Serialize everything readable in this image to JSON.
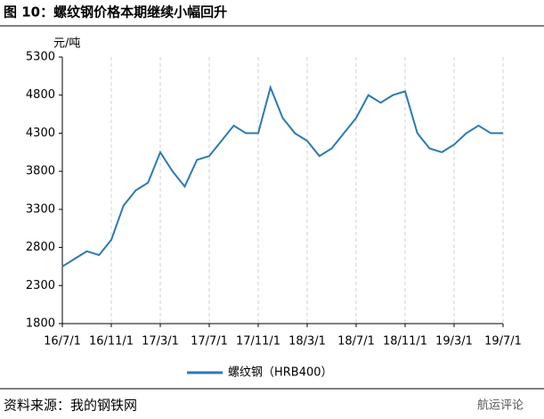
{
  "chart_data": {
    "type": "line",
    "title": "图 10：螺纹钢价格本期继续小幅回升",
    "y_unit": "元/吨",
    "source": "资料来源：我的钢铁网",
    "watermark": "航运评论",
    "x": [
      "16/7/1",
      "16/8/1",
      "16/9/1",
      "16/10/1",
      "16/11/1",
      "16/12/1",
      "17/1/1",
      "17/2/1",
      "17/3/1",
      "17/4/1",
      "17/5/1",
      "17/6/1",
      "17/7/1",
      "17/8/1",
      "17/9/1",
      "17/10/1",
      "17/11/1",
      "17/12/1",
      "18/1/1",
      "18/2/1",
      "18/3/1",
      "18/4/1",
      "18/5/1",
      "18/6/1",
      "18/7/1",
      "18/8/1",
      "18/9/1",
      "18/10/1",
      "18/11/1",
      "18/12/1",
      "19/1/1",
      "19/2/1",
      "19/3/1",
      "19/4/1",
      "19/5/1",
      "19/6/1",
      "19/7/1"
    ],
    "series": [
      {
        "name": "螺纹钢（HRB400）",
        "color": "#2a7ab5",
        "values": [
          2550,
          2650,
          2750,
          2700,
          2900,
          3350,
          3550,
          3650,
          4050,
          3800,
          3600,
          3950,
          4000,
          4200,
          4400,
          4300,
          4300,
          4900,
          4500,
          4300,
          4200,
          4000,
          4100,
          4300,
          4500,
          4800,
          4700,
          4800,
          4850,
          4300,
          4100,
          4050,
          4150,
          4300,
          4400,
          4300,
          4300
        ]
      }
    ],
    "xlim": [
      "16/7/1",
      "19/7/1"
    ],
    "xticks": [
      "16/7/1",
      "16/11/1",
      "17/3/1",
      "17/7/1",
      "17/11/1",
      "18/3/1",
      "18/7/1",
      "18/11/1",
      "19/3/1",
      "19/7/1"
    ],
    "ylim": [
      1800,
      5300
    ],
    "yticks": [
      1800,
      2300,
      2800,
      3300,
      3800,
      4300,
      4800,
      5300
    ],
    "grid": true
  }
}
